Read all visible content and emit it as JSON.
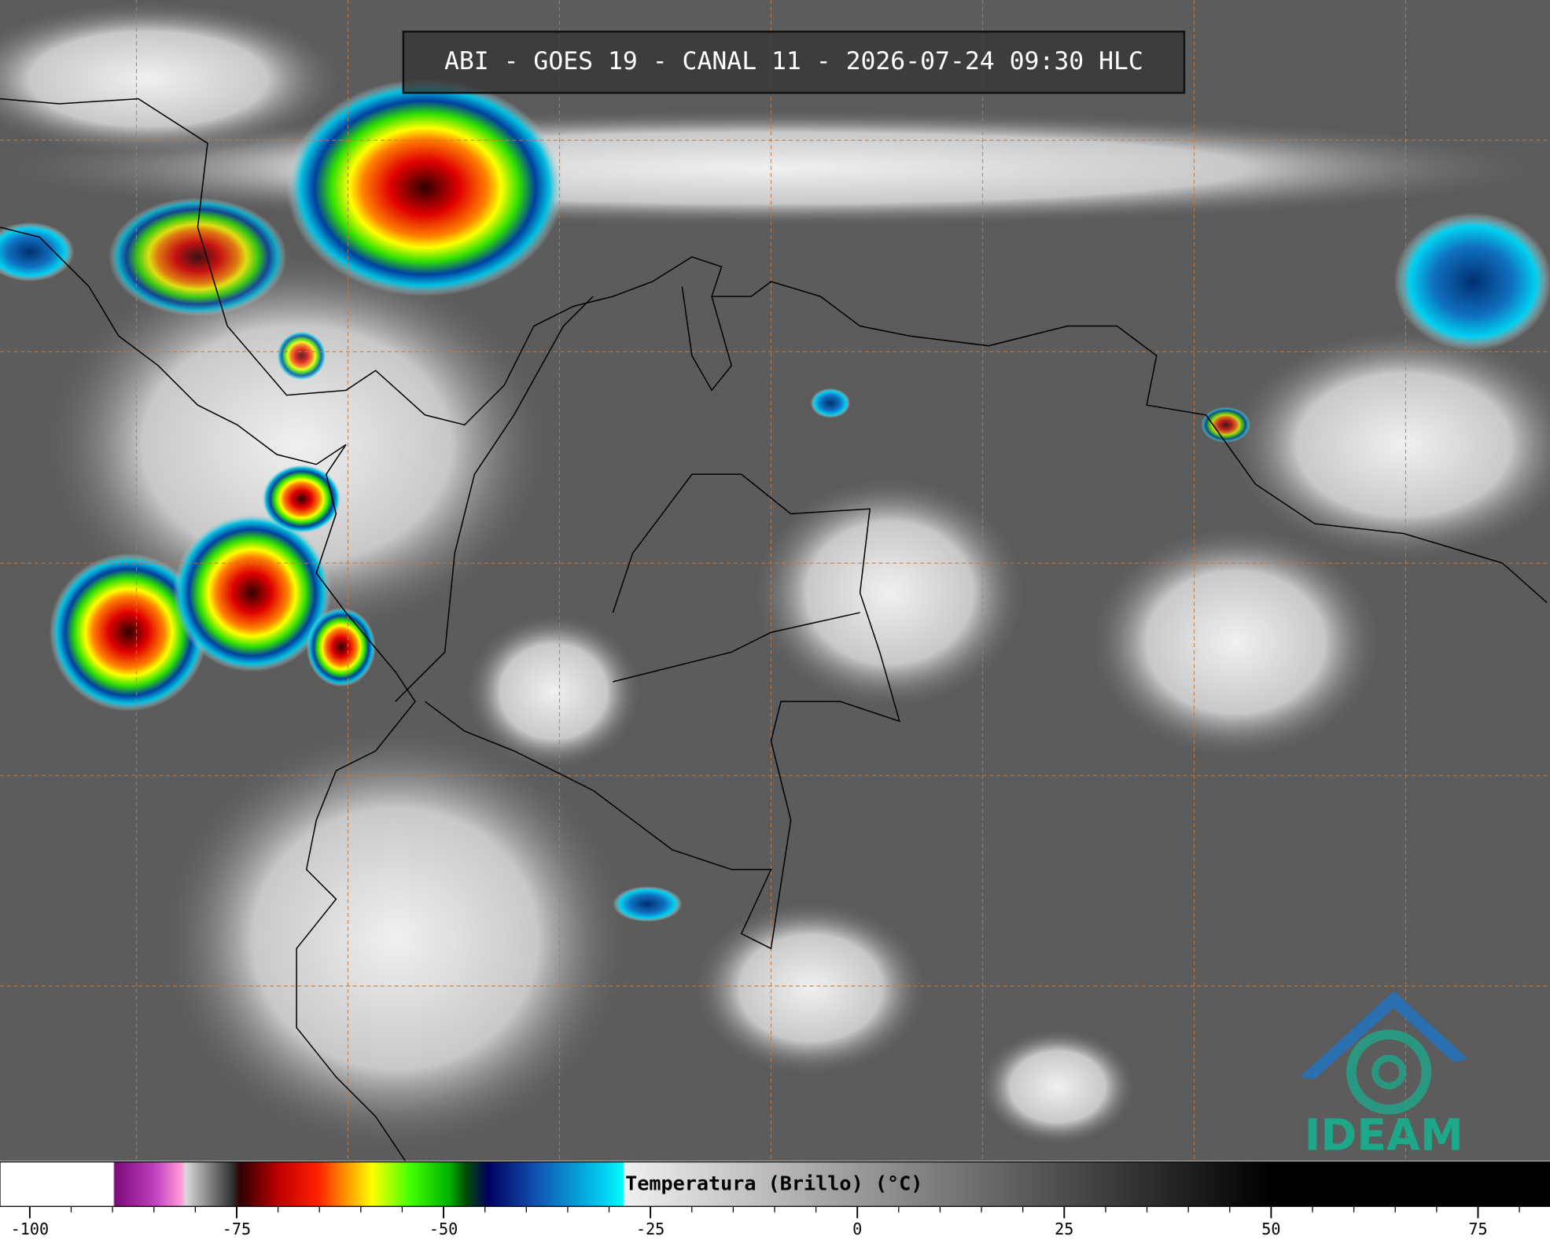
{
  "image": {
    "title": "ABI - GOES 19 - CANAL 11 - 2026-07-24 09:30 HLC",
    "logo_text": "IDEAM"
  },
  "colorbar": {
    "label": "Temperatura (Brillo) (°C)",
    "lim": [
      -103.6,
      83.7
    ],
    "ticks": [
      -100,
      -75,
      -50,
      -25,
      0,
      25,
      50,
      75
    ]
  }
}
